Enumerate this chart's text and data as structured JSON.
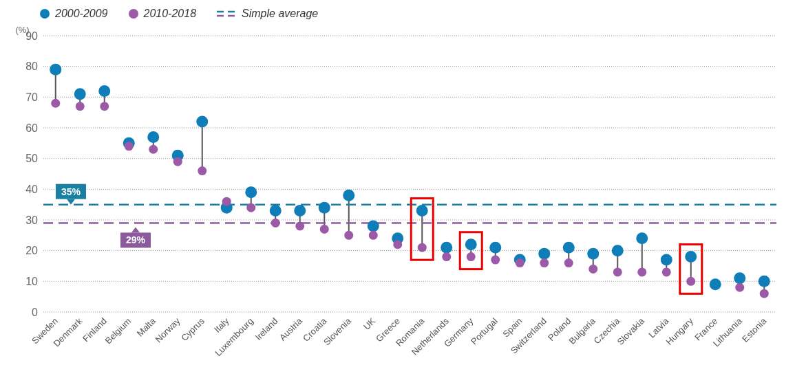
{
  "chart_data": {
    "type": "scatter",
    "ylabel": "(%)",
    "categories": [
      "Sweden",
      "Denmark",
      "Finland",
      "Belgium",
      "Malta",
      "Norway",
      "Cyprus",
      "Italy",
      "Luxembourg",
      "Ireland",
      "Austria",
      "Croatia",
      "Slovenia",
      "UK",
      "Greece",
      "Romania",
      "Netherlands",
      "Germany",
      "Portugal",
      "Spain",
      "Switzerland",
      "Poland",
      "Bulgaria",
      "Czechia",
      "Slovakia",
      "Latvia",
      "Hungary",
      "France",
      "Lithuania",
      "Estonia"
    ],
    "series": [
      {
        "name": "2000-2009",
        "color": "#0f7db8",
        "values": [
          79,
          71,
          72,
          55,
          57,
          51,
          62,
          34,
          39,
          33,
          33,
          34,
          38,
          28,
          24,
          33,
          21,
          22,
          21,
          17,
          19,
          21,
          19,
          20,
          24,
          17,
          18,
          9,
          11,
          10
        ]
      },
      {
        "name": "2010-2018",
        "color": "#9b59a8",
        "values": [
          68,
          67,
          67,
          54,
          53,
          49,
          46,
          36,
          34,
          29,
          28,
          27,
          25,
          25,
          22,
          21,
          18,
          18,
          17,
          16,
          16,
          16,
          14,
          13,
          13,
          13,
          10,
          null,
          8,
          6
        ]
      }
    ],
    "ylim": [
      0,
      90
    ],
    "yticks": [
      0,
      10,
      20,
      30,
      40,
      50,
      60,
      70,
      80,
      90
    ],
    "grid": "y",
    "marker": "circle",
    "legend": "top left",
    "ref_lines": [
      {
        "axis": "y",
        "value": 35,
        "label": "35%",
        "color": "#1a7fa3",
        "line_style": "dashed"
      },
      {
        "axis": "y",
        "value": 29,
        "label": "29%",
        "color": "#8a5a9c",
        "line_style": "dashed"
      }
    ],
    "annotations": [
      "Simple average"
    ]
  }
}
